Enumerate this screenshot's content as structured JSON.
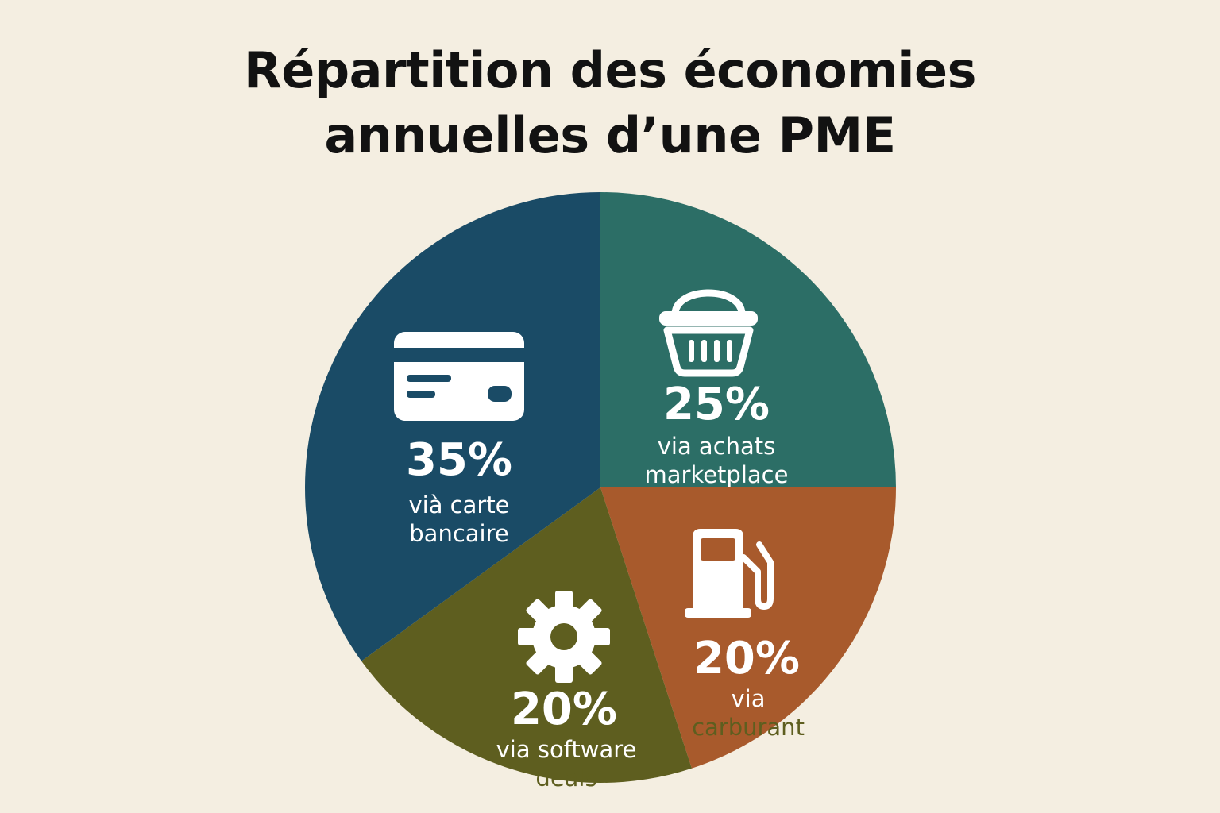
{
  "colors": {
    "background": "#f4eee1",
    "title": "#121212",
    "label": "#ffffff",
    "overflow_label": "#5e5e1f"
  },
  "chart_data": {
    "type": "pie",
    "title_lines": [
      "Répartition des économies",
      "annuelles d’une PME"
    ],
    "slices": [
      {
        "value": 25,
        "pct_label": "25%",
        "label_lines": [
          "via achats",
          "marketplace"
        ],
        "color": "#2c6e66",
        "icon": "basket-icon"
      },
      {
        "value": 20,
        "pct_label": "20%",
        "label_lines": [
          "via",
          "carburant"
        ],
        "color": "#a85a2c",
        "icon": "fuel-pump-icon"
      },
      {
        "value": 20,
        "pct_label": "20%",
        "label_lines": [
          "via software",
          "deals"
        ],
        "color": "#5e5e1f",
        "icon": "gear-icon"
      },
      {
        "value": 35,
        "pct_label": "35%",
        "label_lines": [
          "vià carte",
          "bancaire"
        ],
        "color": "#1a4b66",
        "icon": "credit-card-icon"
      }
    ]
  }
}
